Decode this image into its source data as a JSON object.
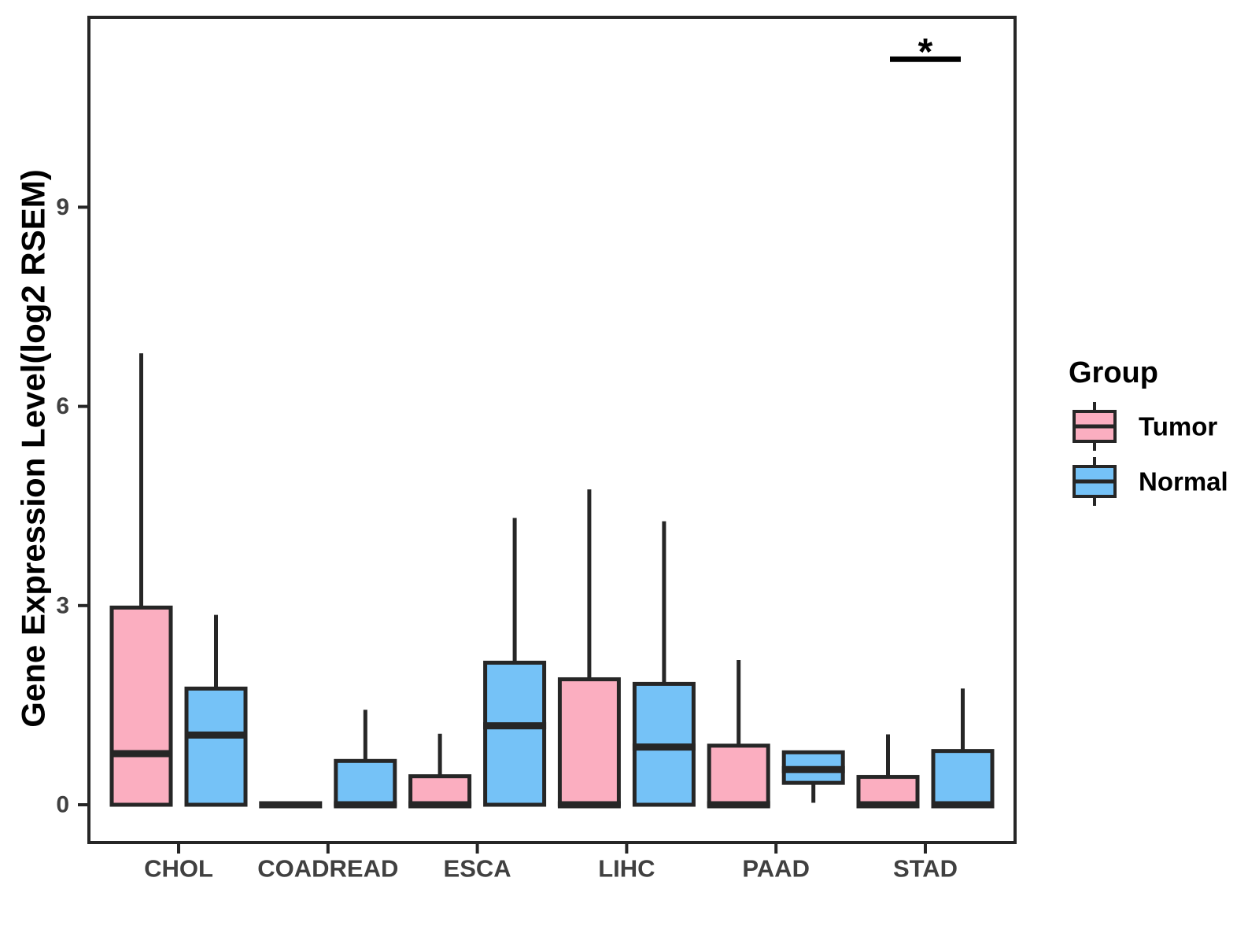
{
  "figure": {
    "background": "#ffffff"
  },
  "chart_data": {
    "type": "box",
    "title": "",
    "xlabel": "",
    "ylabel": "Gene Expression Level(log2 RSEM)",
    "ylim": [
      -0.57,
      11.86
    ],
    "yticks": [
      0,
      3,
      6,
      9
    ],
    "grid": false,
    "categories": [
      "CHOL",
      "COADREAD",
      "ESCA",
      "LIHC",
      "PAAD",
      "STAD"
    ],
    "colors": {
      "tumor_fill": "#FBAEC0",
      "normal_fill": "#75C2F7",
      "line": "#262626",
      "tick_label": "#404040",
      "title_text": "#000000",
      "significance": "#000000"
    },
    "legend": {
      "title": "Group",
      "position": "right",
      "entries": [
        {
          "label": "Tumor",
          "color": "#FBAEC0"
        },
        {
          "label": "Normal",
          "color": "#75C2F7"
        }
      ]
    },
    "series": [
      {
        "name": "Tumor",
        "color": "#FBAEC0",
        "boxes": [
          {
            "category": "CHOL",
            "whisker_low": 0,
            "q1": 0,
            "median": 0.77,
            "q3": 2.97,
            "whisker_high": 6.8
          },
          {
            "category": "COADREAD",
            "whisker_low": 0,
            "q1": 0,
            "median": 0,
            "q3": 0,
            "whisker_high": 0
          },
          {
            "category": "ESCA",
            "whisker_low": 0,
            "q1": 0,
            "median": 0,
            "q3": 0.43,
            "whisker_high": 1.07
          },
          {
            "category": "LIHC",
            "whisker_low": 0,
            "q1": 0,
            "median": 0,
            "q3": 1.89,
            "whisker_high": 4.75
          },
          {
            "category": "PAAD",
            "whisker_low": 0,
            "q1": 0,
            "median": 0,
            "q3": 0.89,
            "whisker_high": 2.18
          },
          {
            "category": "STAD",
            "whisker_low": 0,
            "q1": 0,
            "median": 0,
            "q3": 0.42,
            "whisker_high": 1.06
          }
        ]
      },
      {
        "name": "Normal",
        "color": "#75C2F7",
        "boxes": [
          {
            "category": "CHOL",
            "whisker_low": 0,
            "q1": 0,
            "median": 1.05,
            "q3": 1.75,
            "whisker_high": 2.86
          },
          {
            "category": "COADREAD",
            "whisker_low": 0,
            "q1": 0,
            "median": 0,
            "q3": 0.66,
            "whisker_high": 1.43
          },
          {
            "category": "ESCA",
            "whisker_low": 0,
            "q1": 0,
            "median": 1.19,
            "q3": 2.14,
            "whisker_high": 4.32
          },
          {
            "category": "LIHC",
            "whisker_low": 0,
            "q1": 0,
            "median": 0.87,
            "q3": 1.82,
            "whisker_high": 4.27
          },
          {
            "category": "PAAD",
            "whisker_low": 0.03,
            "q1": 0.33,
            "median": 0.53,
            "q3": 0.79,
            "whisker_high": 0.79
          },
          {
            "category": "STAD",
            "whisker_low": 0,
            "q1": 0,
            "median": 0,
            "q3": 0.81,
            "whisker_high": 1.75
          }
        ]
      }
    ],
    "annotations": [
      {
        "type": "significance",
        "label": "*",
        "category": "STAD",
        "bar_y": 11.23
      }
    ]
  }
}
